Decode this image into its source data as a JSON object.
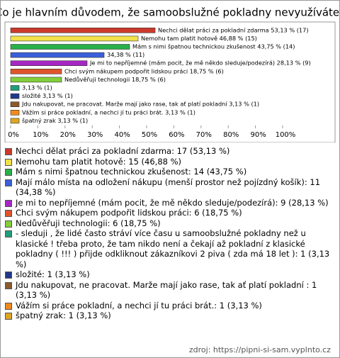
{
  "chart_data": {
    "type": "bar",
    "orientation": "horizontal",
    "title": "Co je hlavním důvodem, že samoobslužné pokladny nevyužíváte?",
    "xlim": [
      0,
      100
    ],
    "xticks": [
      {
        "value": 0,
        "label": "0%"
      },
      {
        "value": 10,
        "label": "10%"
      },
      {
        "value": 20,
        "label": "20%"
      },
      {
        "value": 30,
        "label": "30%"
      },
      {
        "value": 40,
        "label": "40%"
      },
      {
        "value": 50,
        "label": "50%"
      },
      {
        "value": 60,
        "label": "60%"
      },
      {
        "value": 70,
        "label": "70%"
      },
      {
        "value": 80,
        "label": "80%"
      },
      {
        "value": 90,
        "label": "90%"
      },
      {
        "value": 100,
        "label": "100%"
      }
    ],
    "values": [
      53.13,
      46.88,
      43.75,
      34.38,
      28.13,
      18.75,
      18.75,
      3.13,
      3.13,
      3.13,
      3.13,
      3.13
    ],
    "colors": [
      "#cc3a2c",
      "#f2e14a",
      "#28b04a",
      "#3a5fd9",
      "#a626c4",
      "#e0542c",
      "#82cf3a",
      "#1f9e7a",
      "#22388c",
      "#8a5a2c",
      "#f08a1e",
      "#dca624"
    ],
    "value_labels": [
      "Nechci dělat práci za pokladní zdarma 53,13 % (17)",
      "Nemohu tam platit hotově 46,88 % (15)",
      "Mám s nimi špatnou technickou zkušenost 43,75 % (14)",
      "34,38 % (11)",
      "Je mi to nepříjemné (mám pocit, že mě někdo sleduje/podezírá) 28,13 % (9)",
      "Chci svým nákupem podpořit lidskou práci 18,75 % (6)",
      "Nedůvěřuji technologii 18,75 % (6)",
      "3,13 % (1)",
      "složité 3,13 % (1)",
      "Jdu nakupovat, ne pracovat. Marže mají jako rase, tak ať platí pokladní  3,13 % (1)",
      "Vážím si práce pokladní, a nechci jí tu práci brát. 3,13 % (1)",
      "špatný zrak 3,13 % (1)"
    ],
    "legend_labels": [
      "Nechci dělat práci za pokladní zdarma: 17 (53,13 %)",
      "Nemohu tam platit hotově: 15 (46,88 %)",
      "Mám s nimi špatnou technickou zkušenost: 14 (43,75 %)",
      "Mají málo místa na odložení nákupu (menší prostor než pojízdný košík): 11 (34,38 %)",
      "Je mi to nepříjemné (mám pocit, že mě někdo sleduje/podezírá): 9 (28,13 %)",
      "Chci svým nákupem podpořit lidskou práci: 6 (18,75 %)",
      "Nedůvěřuji technologii: 6 (18,75 %)",
      "- sleduji , že lidé často stráví více času u samoobslužné pokladny  než  u klasické ! třeba proto, že tam nikdo není a čekají až pokladní z klasické pokladny ( !!! ) přijde odkliknout zákazníkovi 2 piva  ( zda má 18 let ): 1 (3,13 %)",
      "složité: 1 (3,13 %)",
      "Jdu nakupovat, ne pracovat. Marže mají jako rase, tak ať platí pokladní : 1 (3,13 %)",
      "Vážím si práce pokladní, a nechci jí tu práci brát.: 1 (3,13 %)",
      "špatný zrak: 1 (3,13 %)"
    ],
    "source": "zdroj: https://pipni-si-sam.vyplnto.cz"
  }
}
